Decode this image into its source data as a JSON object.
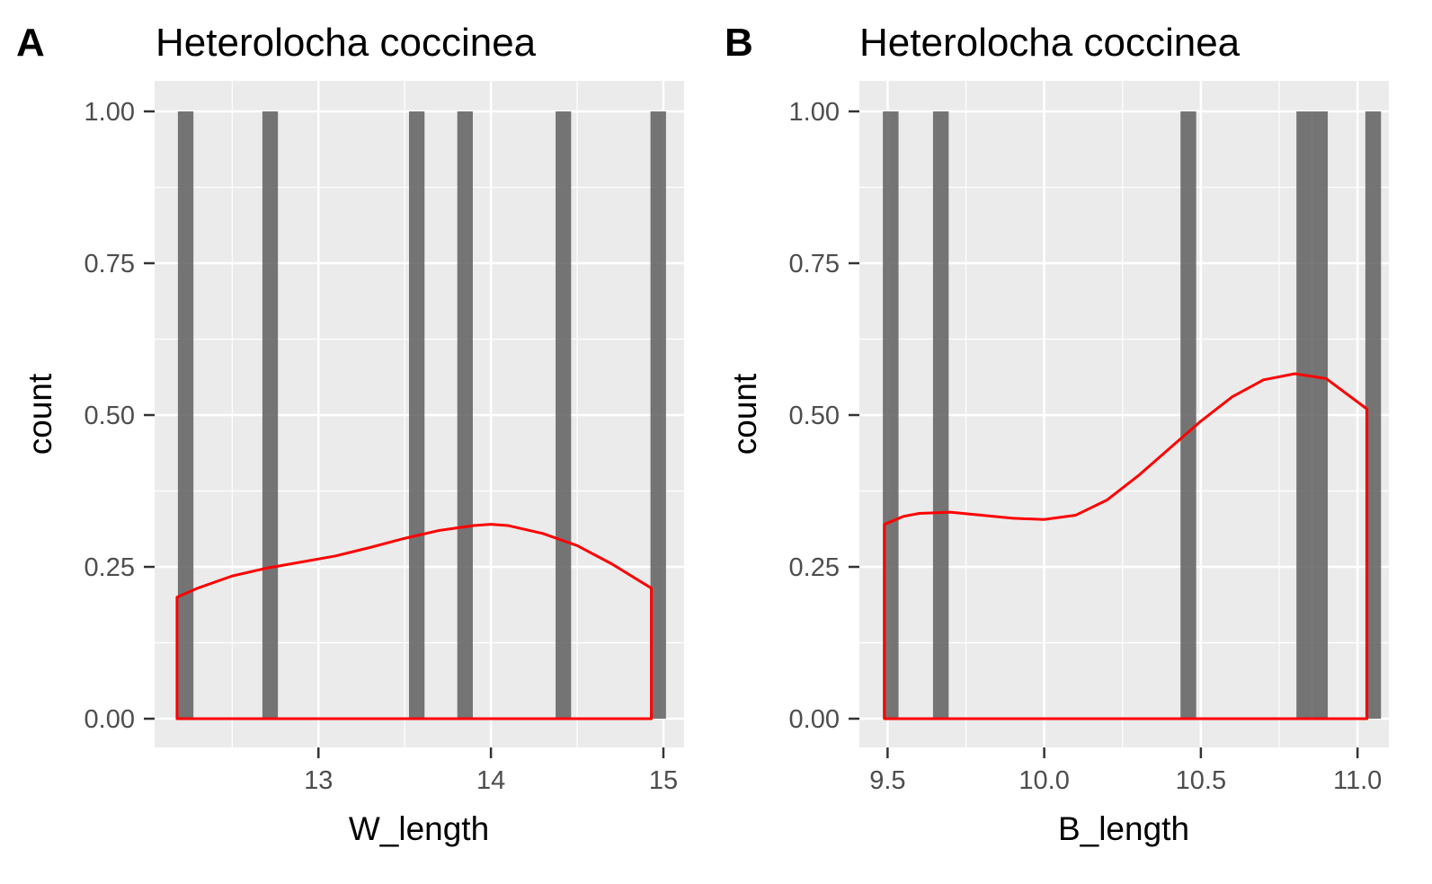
{
  "chart_data": [
    {
      "type": "bar",
      "panel_label": "A",
      "title": "Heterolocha coccinea",
      "xlabel": "W_length",
      "ylabel": "count",
      "xlim": [
        12.05,
        15.12
      ],
      "ylim": [
        0,
        1.0
      ],
      "x_ticks": [
        13,
        14,
        15
      ],
      "x_tick_labels": [
        "13",
        "14",
        "15"
      ],
      "y_ticks": [
        0,
        0.25,
        0.5,
        0.75,
        1.0
      ],
      "y_tick_labels": [
        "0.00",
        "0.25",
        "0.50",
        "0.75",
        "1.00"
      ],
      "bar_width": 0.09,
      "bars": [
        {
          "x": 12.23,
          "value": 1
        },
        {
          "x": 12.72,
          "value": 1
        },
        {
          "x": 13.57,
          "value": 1
        },
        {
          "x": 13.85,
          "value": 1
        },
        {
          "x": 14.42,
          "value": 1
        },
        {
          "x": 14.97,
          "value": 1
        }
      ],
      "density": {
        "color": "#ff0000",
        "x": [
          12.18,
          12.3,
          12.5,
          12.7,
          12.9,
          13.1,
          13.3,
          13.5,
          13.7,
          13.9,
          14.0,
          14.1,
          14.3,
          14.5,
          14.7,
          14.93
        ],
        "y": [
          0.2,
          0.215,
          0.235,
          0.248,
          0.258,
          0.268,
          0.282,
          0.297,
          0.31,
          0.318,
          0.32,
          0.318,
          0.305,
          0.285,
          0.255,
          0.215
        ]
      },
      "grid": true
    },
    {
      "type": "bar",
      "panel_label": "B",
      "title": "Heterolocha coccinea",
      "xlabel": "B_length",
      "ylabel": "count",
      "xlim": [
        9.41,
        11.1
      ],
      "ylim": [
        0,
        1.0
      ],
      "x_ticks": [
        9.5,
        10.0,
        10.5,
        11.0
      ],
      "x_tick_labels": [
        "9.5",
        "10.0",
        "10.5",
        "11.0"
      ],
      "y_ticks": [
        0,
        0.25,
        0.5,
        0.75,
        1.0
      ],
      "y_tick_labels": [
        "0.00",
        "0.25",
        "0.50",
        "0.75",
        "1.00"
      ],
      "bar_width": 0.05,
      "bars": [
        {
          "x": 9.51,
          "value": 1
        },
        {
          "x": 9.67,
          "value": 1
        },
        {
          "x": 10.46,
          "value": 1
        },
        {
          "x": 10.83,
          "value": 1
        },
        {
          "x": 10.88,
          "value": 1
        },
        {
          "x": 11.05,
          "value": 1
        }
      ],
      "density": {
        "color": "#ff0000",
        "x": [
          9.49,
          9.55,
          9.6,
          9.7,
          9.8,
          9.9,
          10.0,
          10.1,
          10.2,
          10.3,
          10.4,
          10.5,
          10.6,
          10.7,
          10.8,
          10.9,
          11.03
        ],
        "y": [
          0.32,
          0.333,
          0.338,
          0.34,
          0.335,
          0.33,
          0.328,
          0.335,
          0.36,
          0.4,
          0.445,
          0.49,
          0.53,
          0.558,
          0.568,
          0.56,
          0.51
        ]
      },
      "grid": true
    }
  ]
}
